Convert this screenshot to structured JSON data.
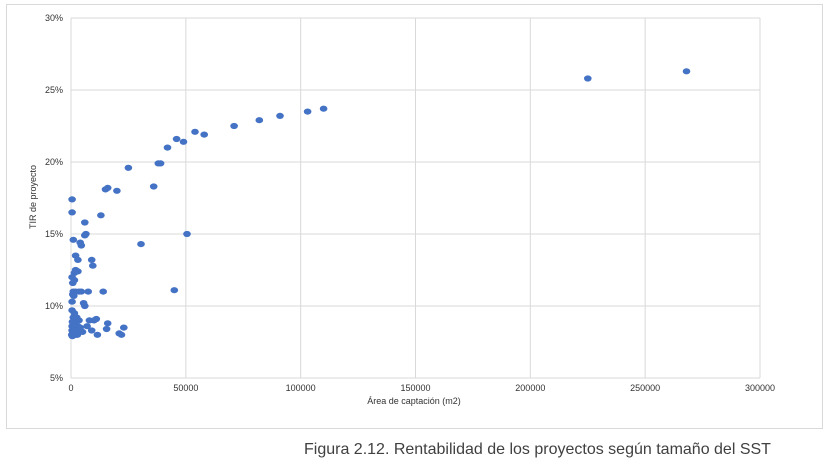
{
  "caption": "Figura 2.12. Rentabilidad de los proyectos según tamaño del SST",
  "chart_data": {
    "type": "scatter",
    "xlabel": "Área de captación (m2)",
    "ylabel": "TIR de proyecto",
    "xlim": [
      0,
      300000
    ],
    "ylim": [
      0.05,
      0.3
    ],
    "x_ticks": [
      0,
      50000,
      100000,
      150000,
      200000,
      250000,
      300000
    ],
    "x_tick_labels": [
      "0",
      "50000",
      "100000",
      "150000",
      "200000",
      "250000",
      "300000"
    ],
    "y_ticks": [
      0.05,
      0.1,
      0.15,
      0.2,
      0.25,
      0.3
    ],
    "y_tick_labels": [
      "5%",
      "10%",
      "15%",
      "20%",
      "25%",
      "30%"
    ],
    "grid": true,
    "legend": "none",
    "marker_color": "#4472c4",
    "points": [
      [
        225000,
        0.258
      ],
      [
        268000,
        0.263
      ],
      [
        110000,
        0.237
      ],
      [
        103000,
        0.235
      ],
      [
        91000,
        0.232
      ],
      [
        82000,
        0.229
      ],
      [
        71000,
        0.225
      ],
      [
        58000,
        0.219
      ],
      [
        54000,
        0.221
      ],
      [
        49000,
        0.214
      ],
      [
        46000,
        0.216
      ],
      [
        42000,
        0.21
      ],
      [
        39000,
        0.199
      ],
      [
        38000,
        0.199
      ],
      [
        36000,
        0.183
      ],
      [
        25000,
        0.196
      ],
      [
        20000,
        0.18
      ],
      [
        16000,
        0.182
      ],
      [
        15000,
        0.181
      ],
      [
        13000,
        0.163
      ],
      [
        6000,
        0.158
      ],
      [
        6500,
        0.15
      ],
      [
        6000,
        0.149
      ],
      [
        30500,
        0.143
      ],
      [
        50500,
        0.15
      ],
      [
        45000,
        0.111
      ],
      [
        4000,
        0.144
      ],
      [
        4500,
        0.142
      ],
      [
        1000,
        0.146
      ],
      [
        500,
        0.174
      ],
      [
        500,
        0.165
      ],
      [
        2000,
        0.135
      ],
      [
        3000,
        0.132
      ],
      [
        9000,
        0.132
      ],
      [
        9500,
        0.128
      ],
      [
        2000,
        0.125
      ],
      [
        3000,
        0.124
      ],
      [
        1500,
        0.123
      ],
      [
        500,
        0.12
      ],
      [
        1500,
        0.118
      ],
      [
        800,
        0.116
      ],
      [
        1000,
        0.11
      ],
      [
        2000,
        0.11
      ],
      [
        3500,
        0.11
      ],
      [
        4500,
        0.11
      ],
      [
        7500,
        0.11
      ],
      [
        14000,
        0.11
      ],
      [
        800,
        0.108
      ],
      [
        1200,
        0.107
      ],
      [
        500,
        0.103
      ],
      [
        5500,
        0.102
      ],
      [
        6000,
        0.1
      ],
      [
        500,
        0.097
      ],
      [
        1500,
        0.095
      ],
      [
        1000,
        0.092
      ],
      [
        2500,
        0.092
      ],
      [
        3500,
        0.09
      ],
      [
        8000,
        0.09
      ],
      [
        10000,
        0.09
      ],
      [
        11000,
        0.091
      ],
      [
        16000,
        0.088
      ],
      [
        23000,
        0.085
      ],
      [
        600,
        0.089
      ],
      [
        1200,
        0.088
      ],
      [
        2000,
        0.087
      ],
      [
        3000,
        0.086
      ],
      [
        4000,
        0.085
      ],
      [
        7000,
        0.086
      ],
      [
        500,
        0.086
      ],
      [
        1000,
        0.084
      ],
      [
        1800,
        0.083
      ],
      [
        2500,
        0.083
      ],
      [
        3500,
        0.082
      ],
      [
        5000,
        0.082
      ],
      [
        9000,
        0.083
      ],
      [
        11500,
        0.08
      ],
      [
        15500,
        0.084
      ],
      [
        21000,
        0.081
      ],
      [
        22000,
        0.08
      ],
      [
        500,
        0.083
      ],
      [
        800,
        0.081
      ],
      [
        1500,
        0.081
      ],
      [
        2200,
        0.08
      ],
      [
        2800,
        0.08
      ],
      [
        600,
        0.079
      ],
      [
        300,
        0.08
      ]
    ]
  }
}
